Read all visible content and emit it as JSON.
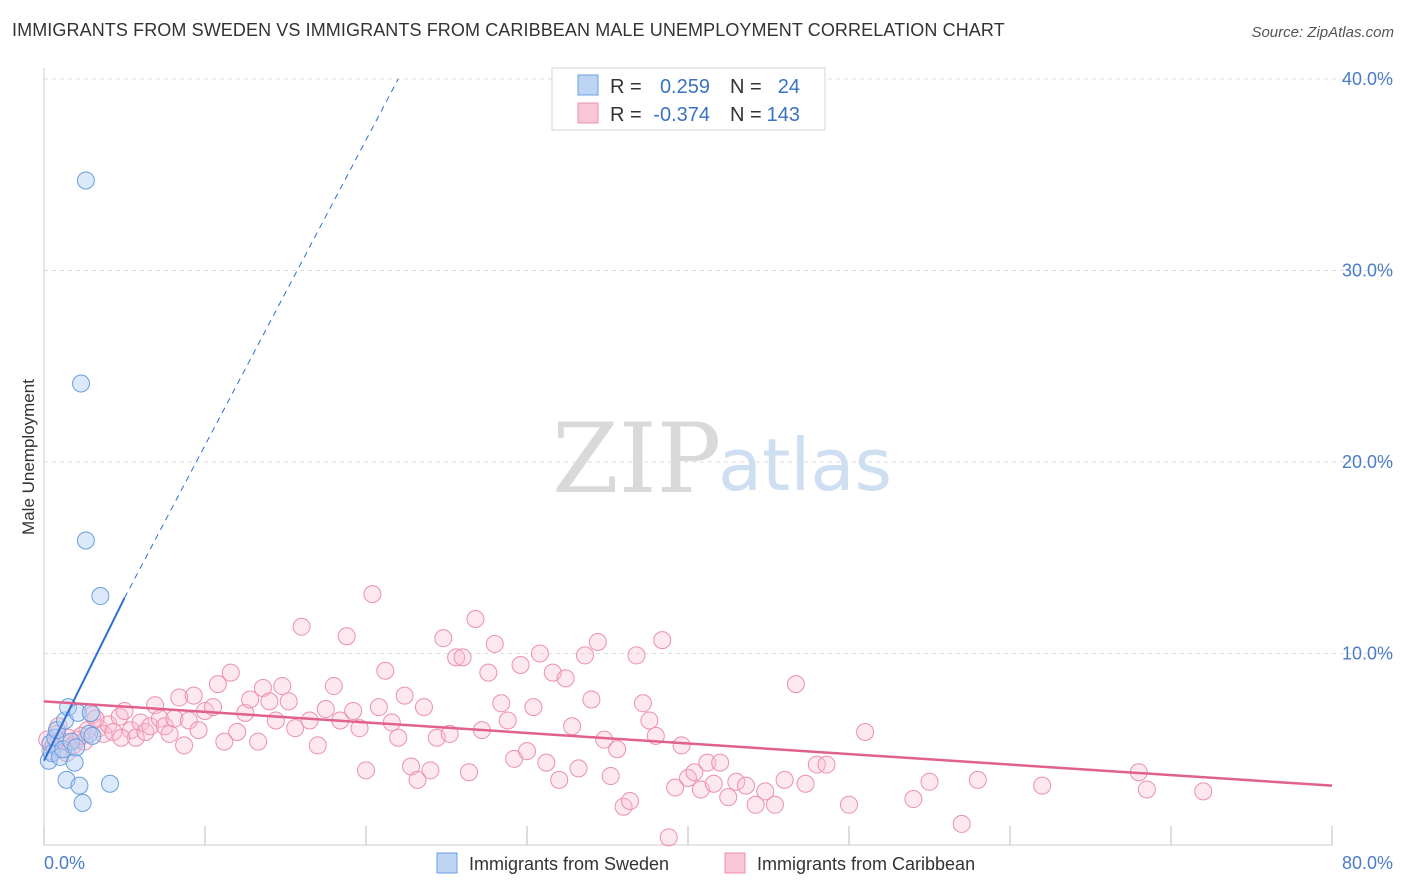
{
  "title": "IMMIGRANTS FROM SWEDEN VS IMMIGRANTS FROM CARIBBEAN MALE UNEMPLOYMENT CORRELATION CHART",
  "source": "Source: ZipAtlas.com",
  "watermark": {
    "zip": "ZIP",
    "atlas": "atlas"
  },
  "colors": {
    "sweden": "#6a9fe0",
    "caribbean": "#ec8fb0",
    "sweden_line": "#2c6fd2",
    "caribbean_line": "#e0608e",
    "tick_text": "#4a7cc8"
  },
  "chart_data": {
    "type": "scatter",
    "title": "IMMIGRANTS FROM SWEDEN VS IMMIGRANTS FROM CARIBBEAN MALE UNEMPLOYMENT CORRELATION CHART",
    "xlabel": "",
    "ylabel": "Male Unemployment",
    "xlim": [
      0,
      80
    ],
    "ylim": [
      0,
      40
    ],
    "x_tick_labels": {
      "left": "0.0%",
      "right": "80.0%"
    },
    "y_ticks": [
      10,
      20,
      30,
      40
    ],
    "y_tick_labels": [
      "10.0%",
      "20.0%",
      "30.0%",
      "40.0%"
    ],
    "grid": true,
    "legend": {
      "position": "top-center",
      "entries": [
        {
          "r_label": "R =",
          "r_value": "0.259",
          "n_label": "N =",
          "n_value": "24"
        },
        {
          "r_label": "R =",
          "r_value": "-0.374",
          "n_label": "N =",
          "n_value": "143"
        }
      ]
    },
    "series": [
      {
        "name": "Immigrants from Sweden",
        "points": [
          [
            0.3,
            4.4
          ],
          [
            0.4,
            5.3
          ],
          [
            0.5,
            4.8
          ],
          [
            0.7,
            5.6
          ],
          [
            0.8,
            6.0
          ],
          [
            1.0,
            4.6
          ],
          [
            1.2,
            5.0
          ],
          [
            1.3,
            6.5
          ],
          [
            1.4,
            3.4
          ],
          [
            1.5,
            7.2
          ],
          [
            1.7,
            5.4
          ],
          [
            1.9,
            4.3
          ],
          [
            2.0,
            5.1
          ],
          [
            2.1,
            6.9
          ],
          [
            2.2,
            3.1
          ],
          [
            2.3,
            24.1
          ],
          [
            2.4,
            2.2
          ],
          [
            2.6,
            34.7
          ],
          [
            2.6,
            15.9
          ],
          [
            2.8,
            5.8
          ],
          [
            2.9,
            6.9
          ],
          [
            3.0,
            5.7
          ],
          [
            3.5,
            13.0
          ],
          [
            4.1,
            3.2
          ]
        ],
        "trend": {
          "x0": 0,
          "y0": 4.4,
          "x1": 5.0,
          "y1": 12.9,
          "dashed_to": {
            "x": 22,
            "y": 40
          }
        }
      },
      {
        "name": "Immigrants from Caribbean",
        "points": [
          [
            0.2,
            5.5
          ],
          [
            0.4,
            4.9
          ],
          [
            0.6,
            5.2
          ],
          [
            0.8,
            5.8
          ],
          [
            1.0,
            5.0
          ],
          [
            1.2,
            5.4
          ],
          [
            1.5,
            5.6
          ],
          [
            1.8,
            5.2
          ],
          [
            2.1,
            5.5
          ],
          [
            2.5,
            5.4
          ],
          [
            2.7,
            6.0
          ],
          [
            3.0,
            6.8
          ],
          [
            3.4,
            6.1
          ],
          [
            3.7,
            5.8
          ],
          [
            4.0,
            6.3
          ],
          [
            4.3,
            5.9
          ],
          [
            4.7,
            6.7
          ],
          [
            5.0,
            7.0
          ],
          [
            5.4,
            6.0
          ],
          [
            5.7,
            5.6
          ],
          [
            6.0,
            6.4
          ],
          [
            6.3,
            5.9
          ],
          [
            6.6,
            6.2
          ],
          [
            6.9,
            7.3
          ],
          [
            7.2,
            6.6
          ],
          [
            7.5,
            6.2
          ],
          [
            7.8,
            5.8
          ],
          [
            8.1,
            6.6
          ],
          [
            8.4,
            7.7
          ],
          [
            8.7,
            5.2
          ],
          [
            9.0,
            6.5
          ],
          [
            9.3,
            7.8
          ],
          [
            9.6,
            6.0
          ],
          [
            10.0,
            7.0
          ],
          [
            10.5,
            7.2
          ],
          [
            10.8,
            8.4
          ],
          [
            11.2,
            5.4
          ],
          [
            11.6,
            9.0
          ],
          [
            12.0,
            5.9
          ],
          [
            12.5,
            6.9
          ],
          [
            12.8,
            7.6
          ],
          [
            13.3,
            5.4
          ],
          [
            13.6,
            8.2
          ],
          [
            14.0,
            7.5
          ],
          [
            14.4,
            6.5
          ],
          [
            14.8,
            8.3
          ],
          [
            15.2,
            7.5
          ],
          [
            15.6,
            6.1
          ],
          [
            16.0,
            11.4
          ],
          [
            16.5,
            6.5
          ],
          [
            17.0,
            5.2
          ],
          [
            17.5,
            7.1
          ],
          [
            18.0,
            8.3
          ],
          [
            18.4,
            6.5
          ],
          [
            18.8,
            10.9
          ],
          [
            19.2,
            7.0
          ],
          [
            19.6,
            6.1
          ],
          [
            20.0,
            3.9
          ],
          [
            20.4,
            13.1
          ],
          [
            20.8,
            7.2
          ],
          [
            21.2,
            9.1
          ],
          [
            21.6,
            6.4
          ],
          [
            22.0,
            5.6
          ],
          [
            22.4,
            7.8
          ],
          [
            22.8,
            4.1
          ],
          [
            23.2,
            3.4
          ],
          [
            23.6,
            7.2
          ],
          [
            24.0,
            3.9
          ],
          [
            24.4,
            5.6
          ],
          [
            24.8,
            10.8
          ],
          [
            25.2,
            5.8
          ],
          [
            25.6,
            9.8
          ],
          [
            26.0,
            9.8
          ],
          [
            26.4,
            3.8
          ],
          [
            26.8,
            11.8
          ],
          [
            27.2,
            6.0
          ],
          [
            27.6,
            9.0
          ],
          [
            28.0,
            10.5
          ],
          [
            28.4,
            7.4
          ],
          [
            28.8,
            6.5
          ],
          [
            29.2,
            4.5
          ],
          [
            29.6,
            9.4
          ],
          [
            30.0,
            4.9
          ],
          [
            30.4,
            7.2
          ],
          [
            30.8,
            10.0
          ],
          [
            31.2,
            4.3
          ],
          [
            31.6,
            9.0
          ],
          [
            32.0,
            3.4
          ],
          [
            32.4,
            8.7
          ],
          [
            32.8,
            6.2
          ],
          [
            33.2,
            4.0
          ],
          [
            33.6,
            9.9
          ],
          [
            34.0,
            7.6
          ],
          [
            34.4,
            10.6
          ],
          [
            34.8,
            5.5
          ],
          [
            35.2,
            3.6
          ],
          [
            35.6,
            5.0
          ],
          [
            36.0,
            2.0
          ],
          [
            36.4,
            2.3
          ],
          [
            36.8,
            9.9
          ],
          [
            37.2,
            7.4
          ],
          [
            37.6,
            6.5
          ],
          [
            38.0,
            5.7
          ],
          [
            38.4,
            10.7
          ],
          [
            38.8,
            0.4
          ],
          [
            39.2,
            3.0
          ],
          [
            39.6,
            5.2
          ],
          [
            40.0,
            3.5
          ],
          [
            40.4,
            3.8
          ],
          [
            40.8,
            2.9
          ],
          [
            41.2,
            4.3
          ],
          [
            41.6,
            3.2
          ],
          [
            42.0,
            4.3
          ],
          [
            42.5,
            2.5
          ],
          [
            43.0,
            3.3
          ],
          [
            43.6,
            3.1
          ],
          [
            44.2,
            2.1
          ],
          [
            44.8,
            2.8
          ],
          [
            45.4,
            2.1
          ],
          [
            46.0,
            3.4
          ],
          [
            46.7,
            8.4
          ],
          [
            47.3,
            3.2
          ],
          [
            48.0,
            4.2
          ],
          [
            48.6,
            4.2
          ],
          [
            50.0,
            2.1
          ],
          [
            51.0,
            5.9
          ],
          [
            54.0,
            2.4
          ],
          [
            55.0,
            3.3
          ],
          [
            57.0,
            1.1
          ],
          [
            58.0,
            3.4
          ],
          [
            62.0,
            3.1
          ],
          [
            68.0,
            3.8
          ],
          [
            68.5,
            2.9
          ],
          [
            72.0,
            2.8
          ],
          [
            0.9,
            6.2
          ],
          [
            1.4,
            4.8
          ],
          [
            2.3,
            5.7
          ],
          [
            3.2,
            6.6
          ],
          [
            4.8,
            5.6
          ]
        ],
        "trend": {
          "x0": 0,
          "y0": 7.5,
          "x1": 80,
          "y1": 3.1
        }
      }
    ]
  }
}
